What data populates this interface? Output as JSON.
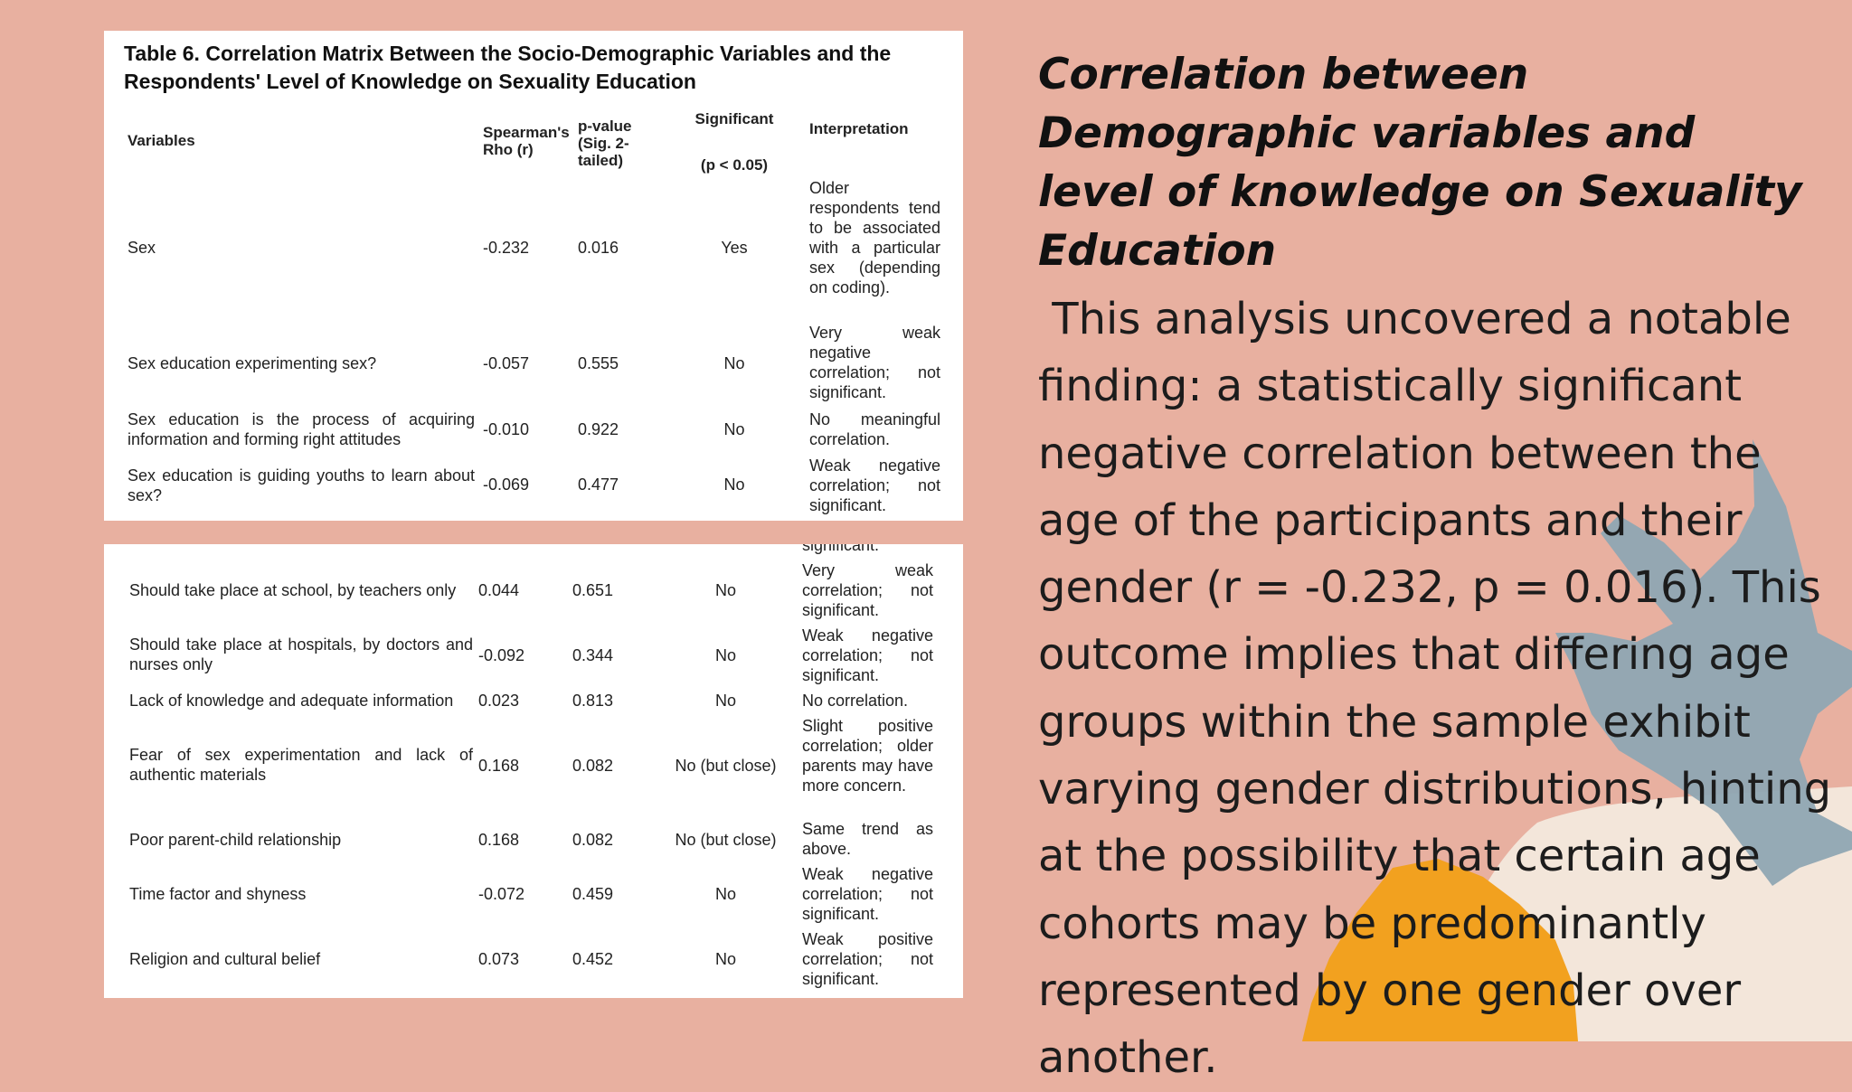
{
  "slide": {
    "heading": "Correlation between Demographic variables and level of knowledge on Sexuality Education",
    "paragraph": " This analysis uncovered a notable finding: a statistically significant negative correlation between the age of the participants and their gender (r = -0.232, p = 0.016). This outcome implies that differing age groups within the sample exhibit varying gender distributions, hinting at the possibility that certain age cohorts may be predominantly represented by one gender over another."
  },
  "table": {
    "caption_label": "Table 6.",
    "caption_text": "Correlation Matrix Between the Socio-Demographic Variables and the Respondents' Level of Knowledge on Sexuality Education",
    "headers": {
      "variables": "Variables",
      "rho": "Spearman's Rho (r)",
      "pvalue": "p-value (Sig. 2-tailed)",
      "significant": "Significant",
      "significant_sub": "(p < 0.05)",
      "interpretation": "Interpretation"
    },
    "rows_part1": [
      {
        "variable": "Sex",
        "rho": "-0.232",
        "p": "0.016",
        "sig": "Yes",
        "interp": "Older respondents tend to be associated with a particular sex (depending on coding)."
      },
      {
        "variable": "Sex education experimenting sex?",
        "rho": "-0.057",
        "p": "0.555",
        "sig": "No",
        "interp": "Very weak negative correlation; not significant."
      },
      {
        "variable": "Sex education is the process of acquiring information and forming right attitudes",
        "rho": "-0.010",
        "p": "0.922",
        "sig": "No",
        "interp": "No meaningful correlation."
      },
      {
        "variable": "Sex education is guiding youths to learn about sex?",
        "rho": "-0.069",
        "p": "0.477",
        "sig": "No",
        "interp": "Weak negative correlation; not significant."
      }
    ],
    "continued_fragment": "significant.",
    "rows_part2": [
      {
        "variable": "Should take place at school, by teachers only",
        "rho": "0.044",
        "p": "0.651",
        "sig": "No",
        "interp": "Very weak correlation; not significant."
      },
      {
        "variable": "Should take place at hospitals, by doctors and nurses only",
        "rho": "-0.092",
        "p": "0.344",
        "sig": "No",
        "interp": "Weak negative correlation; not significant."
      },
      {
        "variable": "Lack of knowledge and adequate information",
        "rho": "0.023",
        "p": "0.813",
        "sig": "No",
        "interp": "No correlation."
      },
      {
        "variable": "Fear of sex experimentation and lack of authentic materials",
        "rho": "0.168",
        "p": "0.082",
        "sig": "No (but close)",
        "interp": "Slight positive correlation; older parents may have more concern."
      },
      {
        "variable": "Poor parent-child relationship",
        "rho": "0.168",
        "p": "0.082",
        "sig": "No (but close)",
        "interp": "Same trend as above."
      },
      {
        "variable": "Time factor and shyness",
        "rho": "-0.072",
        "p": "0.459",
        "sig": "No",
        "interp": "Weak negative correlation; not significant."
      },
      {
        "variable": "Religion and cultural belief",
        "rho": "0.073",
        "p": "0.452",
        "sig": "No",
        "interp": "Weak positive correlation; not significant."
      }
    ]
  },
  "colors": {
    "background": "#e8b0a0",
    "shape_blue": "#8fa6b3",
    "shape_cream": "#f3e6da",
    "shape_orange": "#f2a11f"
  }
}
